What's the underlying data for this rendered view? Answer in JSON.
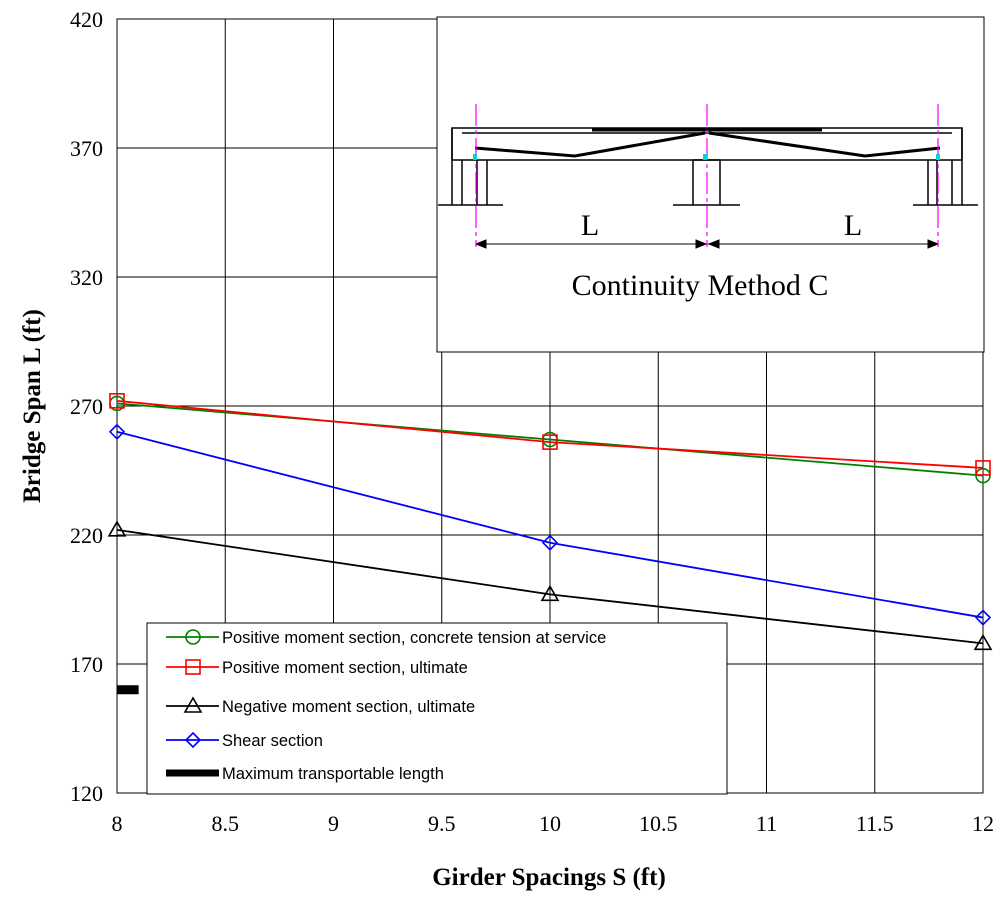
{
  "chart_data": {
    "type": "line",
    "xlabel": "Girder Spacings S (ft)",
    "ylabel": "Bridge Span L (ft)",
    "xlim": [
      8,
      12
    ],
    "ylim": [
      120,
      420
    ],
    "xticks": [
      8,
      8.5,
      9,
      9.5,
      10,
      10.5,
      11,
      11.5,
      12
    ],
    "xtick_labels": [
      "8",
      "8.5",
      "9",
      "9.5",
      "10",
      "10.5",
      "11",
      "11.5",
      "12"
    ],
    "yticks": [
      120,
      170,
      220,
      270,
      320,
      370,
      420
    ],
    "ytick_labels": [
      "120",
      "170",
      "220",
      "270",
      "320",
      "370",
      "420"
    ],
    "grid": true,
    "legend_position": "bottom-left",
    "series": [
      {
        "name": "Positive moment section, concrete tension at service",
        "x": [
          8,
          10,
          12
        ],
        "y": [
          271,
          257,
          243
        ],
        "color": "#008000",
        "marker": "circle"
      },
      {
        "name": "Positive moment section, ultimate",
        "x": [
          8,
          10,
          12
        ],
        "y": [
          272,
          256,
          246
        ],
        "color": "#ff0000",
        "marker": "square"
      },
      {
        "name": "Negative moment section, ultimate",
        "x": [
          8,
          10,
          12
        ],
        "y": [
          222,
          197,
          178
        ],
        "color": "#000000",
        "marker": "triangle"
      },
      {
        "name": "Shear section",
        "x": [
          8,
          10,
          12
        ],
        "y": [
          260,
          217,
          188
        ],
        "color": "#0000ff",
        "marker": "diamond"
      },
      {
        "name": "Maximum transportable length",
        "x": [
          8,
          8.1
        ],
        "y": [
          160,
          160
        ],
        "color": "#000000",
        "marker": "none"
      }
    ],
    "inset": {
      "caption": "Continuity Method C",
      "span_label_left": "L",
      "span_label_right": "L"
    }
  }
}
